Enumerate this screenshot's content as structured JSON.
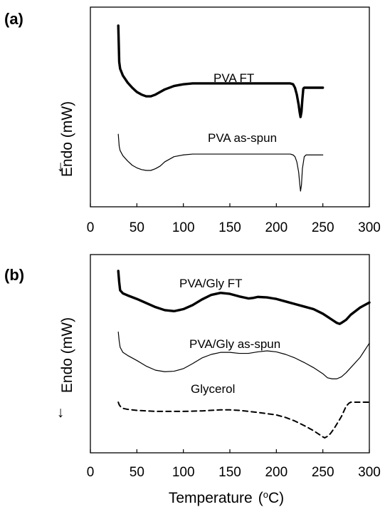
{
  "chart_data": [
    {
      "panel_label": "(a)",
      "type": "line",
      "title": "",
      "xlabel": "",
      "ylabel": "Endo  (mW)",
      "ylabel_arrow": "↓",
      "xlim": [
        0,
        300
      ],
      "x_ticks": [
        "0",
        "50",
        "100",
        "150",
        "200",
        "250",
        "300"
      ],
      "y_ticks_shown": false,
      "grid": false,
      "series": [
        {
          "name": "PVA FT",
          "style": "thick",
          "x": [
            30,
            30.5,
            31,
            32,
            35,
            40,
            45,
            50,
            55,
            60,
            65,
            70,
            75,
            80,
            90,
            100,
            110,
            120,
            140,
            160,
            180,
            200,
            210,
            215,
            218,
            220,
            222,
            224,
            225,
            226,
            227,
            228,
            229,
            230,
            232,
            235,
            240,
            250
          ],
          "y": [
            0.0,
            0.2,
            0.42,
            0.5,
            0.58,
            0.66,
            0.72,
            0.77,
            0.8,
            0.82,
            0.82,
            0.8,
            0.77,
            0.74,
            0.7,
            0.68,
            0.67,
            0.67,
            0.67,
            0.67,
            0.67,
            0.67,
            0.67,
            0.67,
            0.68,
            0.72,
            0.8,
            0.92,
            1.0,
            1.06,
            1.0,
            0.85,
            0.73,
            0.72,
            0.72,
            0.72,
            0.72,
            0.72
          ]
        },
        {
          "name": "PVA as-spun",
          "style": "thin",
          "x": [
            30,
            31,
            32,
            35,
            40,
            45,
            50,
            55,
            60,
            65,
            70,
            75,
            80,
            90,
            100,
            110,
            120,
            140,
            160,
            180,
            200,
            210,
            215,
            218,
            220,
            222,
            224,
            225,
            226,
            227,
            228,
            230,
            232,
            235,
            240,
            250
          ],
          "y": [
            1.26,
            1.4,
            1.45,
            1.51,
            1.57,
            1.62,
            1.65,
            1.67,
            1.68,
            1.68,
            1.66,
            1.63,
            1.58,
            1.52,
            1.5,
            1.49,
            1.49,
            1.49,
            1.49,
            1.49,
            1.49,
            1.49,
            1.49,
            1.5,
            1.52,
            1.58,
            1.7,
            1.82,
            1.92,
            1.85,
            1.66,
            1.52,
            1.5,
            1.5,
            1.5,
            1.5
          ]
        }
      ],
      "annotations": [
        "PVA FT",
        "PVA as-spun"
      ]
    },
    {
      "panel_label": "(b)",
      "type": "line",
      "title": "",
      "xlabel": "Temperature (°C)",
      "ylabel": "Endo  (mW)",
      "ylabel_arrow": "↓",
      "xlim": [
        0,
        300
      ],
      "x_ticks": [
        "0",
        "50",
        "100",
        "150",
        "200",
        "250",
        "300"
      ],
      "y_ticks_shown": false,
      "grid": false,
      "series": [
        {
          "name": "PVA/Gly FT",
          "style": "thick",
          "x": [
            30,
            31,
            32,
            35,
            40,
            50,
            60,
            70,
            80,
            90,
            100,
            110,
            120,
            130,
            140,
            150,
            160,
            170,
            175,
            180,
            190,
            200,
            210,
            220,
            230,
            240,
            250,
            255,
            260,
            265,
            268,
            270,
            275,
            280,
            290,
            300
          ],
          "y": [
            0.0,
            0.22,
            0.38,
            0.44,
            0.48,
            0.55,
            0.63,
            0.71,
            0.77,
            0.79,
            0.75,
            0.67,
            0.56,
            0.47,
            0.43,
            0.45,
            0.5,
            0.54,
            0.53,
            0.51,
            0.52,
            0.55,
            0.6,
            0.65,
            0.7,
            0.75,
            0.84,
            0.9,
            0.96,
            1.02,
            1.04,
            1.02,
            0.96,
            0.86,
            0.72,
            0.62
          ]
        },
        {
          "name": "PVA/Gly as-spun",
          "style": "thin",
          "x": [
            30,
            31,
            32,
            35,
            40,
            50,
            60,
            70,
            80,
            90,
            100,
            110,
            120,
            130,
            140,
            150,
            160,
            170,
            180,
            190,
            200,
            210,
            220,
            230,
            240,
            250,
            255,
            260,
            265,
            270,
            275,
            280,
            290,
            300
          ],
          "y": [
            1.2,
            1.38,
            1.5,
            1.6,
            1.66,
            1.76,
            1.87,
            1.95,
            1.98,
            1.97,
            1.92,
            1.82,
            1.71,
            1.64,
            1.6,
            1.6,
            1.62,
            1.62,
            1.59,
            1.57,
            1.59,
            1.64,
            1.71,
            1.8,
            1.9,
            2.02,
            2.1,
            2.12,
            2.12,
            2.08,
            2.0,
            1.9,
            1.7,
            1.42
          ]
        },
        {
          "name": "Glycerol",
          "style": "dashed",
          "x": [
            30,
            31,
            33,
            35,
            40,
            50,
            60,
            70,
            80,
            100,
            120,
            140,
            150,
            160,
            180,
            200,
            210,
            220,
            230,
            240,
            245,
            250,
            252,
            255,
            258,
            262,
            266,
            270,
            272,
            275,
            278,
            280,
            290,
            300
          ],
          "y": [
            2.58,
            2.63,
            2.68,
            2.7,
            2.72,
            2.74,
            2.75,
            2.76,
            2.76,
            2.76,
            2.75,
            2.73,
            2.73,
            2.74,
            2.78,
            2.83,
            2.88,
            2.95,
            3.04,
            3.14,
            3.2,
            3.26,
            3.28,
            3.25,
            3.2,
            3.1,
            2.98,
            2.86,
            2.78,
            2.66,
            2.6,
            2.58,
            2.58,
            2.58
          ]
        }
      ],
      "annotations": [
        "PVA/Gly FT",
        "PVA/Gly as-spun",
        "Glycerol"
      ]
    }
  ],
  "ui": {
    "xlabel_main": "Temperature",
    "xlabel_unit_prefix": "(",
    "xlabel_unit_sup": "o",
    "xlabel_unit_suffix": "C)"
  }
}
